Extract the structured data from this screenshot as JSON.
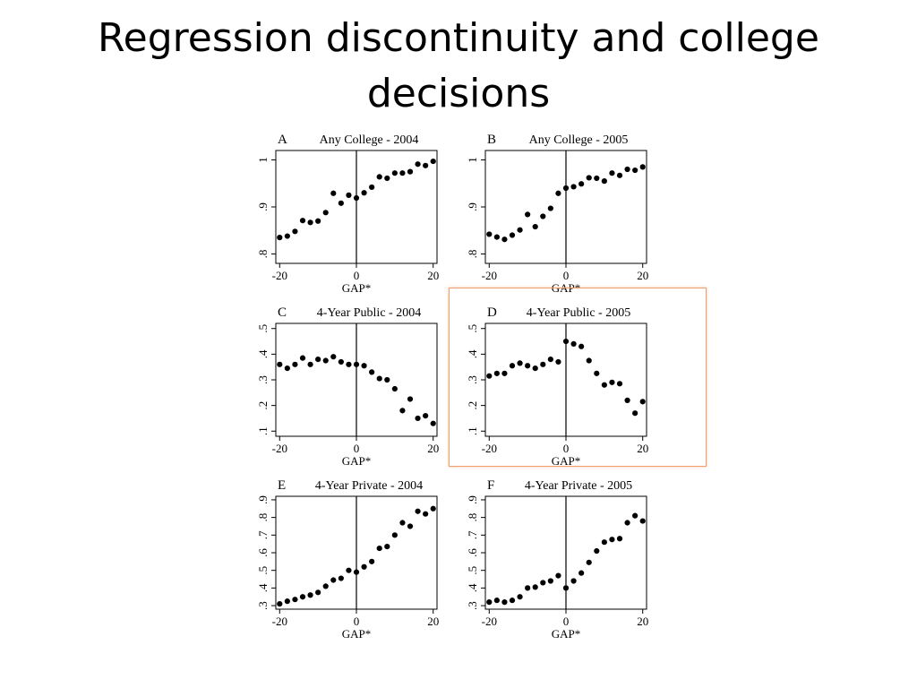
{
  "slide": {
    "title": "Regression discontinuity and college decisions"
  },
  "colors": {
    "highlight": "#f0a070",
    "marker": "#000000"
  },
  "chart_data": [
    {
      "type": "scatter",
      "letter": "A",
      "title": "Any College - 2004",
      "xlabel": "GAP*",
      "xlim": [
        -21,
        21
      ],
      "xticks": [
        "-20",
        "0",
        "20"
      ],
      "ylim": [
        0.78,
        1.02
      ],
      "yticks": [
        0.8,
        0.9,
        1.0
      ],
      "ytick_labels": [
        ".8",
        ".9",
        "1"
      ],
      "cutoff": 0,
      "highlighted": false,
      "x": [
        -20,
        -18,
        -16,
        -14,
        -12,
        -10,
        -8,
        -6,
        -4,
        -2,
        0,
        2,
        4,
        6,
        8,
        10,
        12,
        14,
        16,
        18,
        20
      ],
      "y": [
        0.835,
        0.838,
        0.848,
        0.871,
        0.867,
        0.87,
        0.888,
        0.929,
        0.908,
        0.925,
        0.919,
        0.93,
        0.942,
        0.964,
        0.961,
        0.972,
        0.972,
        0.975,
        0.991,
        0.988,
        0.997
      ]
    },
    {
      "type": "scatter",
      "letter": "B",
      "title": "Any College - 2005",
      "xlabel": "GAP*",
      "xlim": [
        -21,
        21
      ],
      "xticks": [
        "-20",
        "0",
        "20"
      ],
      "ylim": [
        0.78,
        1.02
      ],
      "yticks": [
        0.8,
        0.9,
        1.0
      ],
      "ytick_labels": [
        ".8",
        ".9",
        "1"
      ],
      "cutoff": 0,
      "highlighted": false,
      "x": [
        -20,
        -18,
        -16,
        -14,
        -12,
        -10,
        -8,
        -6,
        -4,
        -2,
        0,
        2,
        4,
        6,
        8,
        10,
        12,
        14,
        16,
        18,
        20
      ],
      "y": [
        0.842,
        0.836,
        0.831,
        0.84,
        0.851,
        0.884,
        0.858,
        0.88,
        0.897,
        0.929,
        0.94,
        0.943,
        0.949,
        0.962,
        0.961,
        0.955,
        0.972,
        0.967,
        0.98,
        0.978,
        0.985
      ]
    },
    {
      "type": "scatter",
      "letter": "C",
      "title": "4-Year Public - 2004",
      "xlabel": "GAP*",
      "xlim": [
        -21,
        21
      ],
      "xticks": [
        "-20",
        "0",
        "20"
      ],
      "ylim": [
        0.08,
        0.52
      ],
      "yticks": [
        0.1,
        0.2,
        0.3,
        0.4,
        0.5
      ],
      "ytick_labels": [
        ".1",
        ".2",
        ".3",
        ".4",
        ".5"
      ],
      "cutoff": 0,
      "highlighted": false,
      "x": [
        -20,
        -18,
        -16,
        -14,
        -12,
        -10,
        -8,
        -6,
        -4,
        -2,
        0,
        2,
        4,
        6,
        8,
        10,
        12,
        14,
        16,
        18,
        20
      ],
      "y": [
        0.36,
        0.345,
        0.36,
        0.385,
        0.36,
        0.38,
        0.375,
        0.39,
        0.37,
        0.36,
        0.36,
        0.355,
        0.33,
        0.305,
        0.3,
        0.265,
        0.18,
        0.225,
        0.15,
        0.16,
        0.13
      ]
    },
    {
      "type": "scatter",
      "letter": "D",
      "title": "4-Year Public - 2005",
      "xlabel": "GAP*",
      "xlim": [
        -21,
        21
      ],
      "xticks": [
        "-20",
        "0",
        "20"
      ],
      "ylim": [
        0.08,
        0.52
      ],
      "yticks": [
        0.1,
        0.2,
        0.3,
        0.4,
        0.5
      ],
      "ytick_labels": [
        ".1",
        ".2",
        ".3",
        ".4",
        ".5"
      ],
      "cutoff": 0,
      "highlighted": true,
      "x": [
        -20,
        -18,
        -16,
        -14,
        -12,
        -10,
        -8,
        -6,
        -4,
        -2,
        0,
        2,
        4,
        6,
        8,
        10,
        12,
        14,
        16,
        18,
        20
      ],
      "y": [
        0.315,
        0.325,
        0.325,
        0.355,
        0.365,
        0.355,
        0.345,
        0.36,
        0.38,
        0.37,
        0.45,
        0.44,
        0.43,
        0.375,
        0.325,
        0.28,
        0.29,
        0.285,
        0.22,
        0.17,
        0.215
      ]
    },
    {
      "type": "scatter",
      "letter": "E",
      "title": "4-Year Private - 2004",
      "xlabel": "GAP*",
      "xlim": [
        -21,
        21
      ],
      "xticks": [
        "-20",
        "0",
        "20"
      ],
      "ylim": [
        0.28,
        0.92
      ],
      "yticks": [
        0.3,
        0.4,
        0.5,
        0.6,
        0.7,
        0.8,
        0.9
      ],
      "ytick_labels": [
        ".3",
        ".4",
        ".5",
        ".6",
        ".7",
        ".8",
        ".9"
      ],
      "cutoff": 0,
      "highlighted": false,
      "x": [
        -20,
        -18,
        -16,
        -14,
        -12,
        -10,
        -8,
        -6,
        -4,
        -2,
        0,
        2,
        4,
        6,
        8,
        10,
        12,
        14,
        16,
        18,
        20
      ],
      "y": [
        0.31,
        0.325,
        0.335,
        0.35,
        0.36,
        0.375,
        0.41,
        0.445,
        0.455,
        0.5,
        0.49,
        0.52,
        0.55,
        0.625,
        0.635,
        0.7,
        0.77,
        0.75,
        0.835,
        0.82,
        0.85
      ]
    },
    {
      "type": "scatter",
      "letter": "F",
      "title": "4-Year Private - 2005",
      "xlabel": "GAP*",
      "xlim": [
        -21,
        21
      ],
      "xticks": [
        "-20",
        "0",
        "20"
      ],
      "ylim": [
        0.28,
        0.92
      ],
      "yticks": [
        0.3,
        0.4,
        0.5,
        0.6,
        0.7,
        0.8,
        0.9
      ],
      "ytick_labels": [
        ".3",
        ".4",
        ".5",
        ".6",
        ".7",
        ".8",
        ".9"
      ],
      "cutoff": 0,
      "highlighted": false,
      "x": [
        -20,
        -18,
        -16,
        -14,
        -12,
        -10,
        -8,
        -6,
        -4,
        -2,
        0,
        2,
        4,
        6,
        8,
        10,
        12,
        14,
        16,
        18,
        20
      ],
      "y": [
        0.32,
        0.33,
        0.32,
        0.33,
        0.35,
        0.4,
        0.405,
        0.43,
        0.44,
        0.47,
        0.4,
        0.44,
        0.485,
        0.545,
        0.61,
        0.66,
        0.675,
        0.68,
        0.77,
        0.81,
        0.78
      ]
    }
  ]
}
